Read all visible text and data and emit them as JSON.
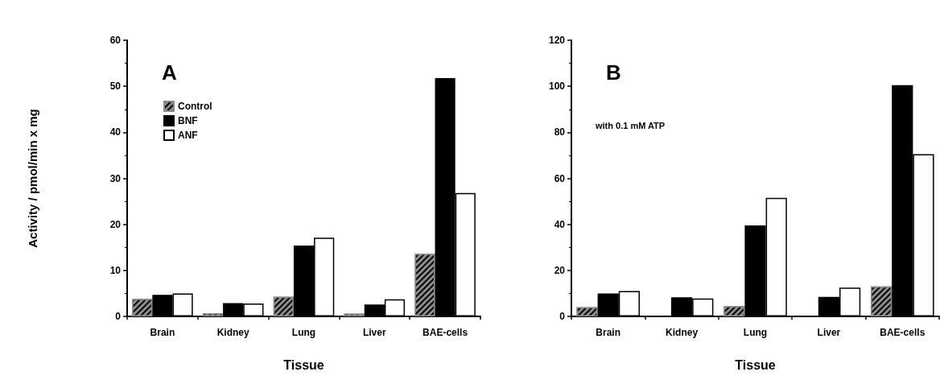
{
  "chart_data": [
    {
      "type": "bar",
      "title": "A",
      "xlabel": "Tissue",
      "ylabel": "Activity / pmol/min x mg",
      "categories": [
        "Brain",
        "Kidney",
        "Lung",
        "Liver",
        "BAE-cells"
      ],
      "series": [
        {
          "name": "Control",
          "color": "#8c8c8c",
          "values": [
            3.8,
            0.7,
            4.3,
            0.6,
            13.6
          ]
        },
        {
          "name": "BNF",
          "color": "#000000",
          "values": [
            4.7,
            2.9,
            15.4,
            2.6,
            51.8
          ]
        },
        {
          "name": "ANF",
          "color": "#ffffff",
          "values": [
            5.0,
            2.8,
            17.1,
            3.7,
            26.8
          ]
        }
      ],
      "ylim": [
        0,
        60
      ],
      "yticks": [
        0,
        10,
        20,
        30,
        40,
        50,
        60
      ],
      "grid": false,
      "legend": "top left"
    },
    {
      "type": "bar",
      "title": "B",
      "xlabel": "Tissue",
      "annotations": [
        "with 0.1 mM ATP"
      ],
      "categories": [
        "Brain",
        "Kidney",
        "Lung",
        "Liver",
        "BAE-cells"
      ],
      "series": [
        {
          "color": "#8c8c8c",
          "values": [
            4,
            null,
            4.5,
            null,
            13
          ]
        },
        {
          "color": "#000000",
          "values": [
            10,
            8.3,
            39.5,
            8.5,
            100.5
          ]
        },
        {
          "color": "#ffffff",
          "values": [
            11,
            7.8,
            51.5,
            12.5,
            70.5
          ]
        }
      ],
      "ylim": [
        0,
        120
      ],
      "yticks": [
        0,
        20,
        40,
        60,
        80,
        100,
        120
      ],
      "grid": false,
      "legend": false
    }
  ]
}
